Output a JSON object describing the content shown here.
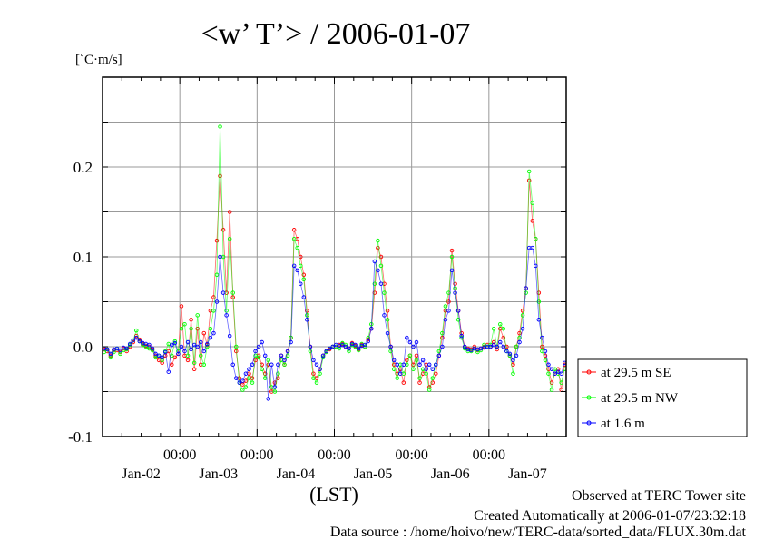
{
  "chart_data": {
    "type": "line",
    "title": "<w’ T’> / 2006-01-07",
    "ylabel": "[˚C·m/s]",
    "xlabel": "(LST)",
    "ylim": [
      -0.1,
      0.3
    ],
    "yticks": [
      -0.1,
      0.0,
      0.1,
      0.2
    ],
    "ytick_labels": [
      "-0.1",
      "0.0",
      "0.1",
      "0.2"
    ],
    "ygrid_step": 0.05,
    "x_unit": "hours since Jan-02 00:00",
    "xlim": [
      0,
      144
    ],
    "x_step_hours": 1,
    "xtick_hours": [
      24,
      48,
      72,
      96,
      120
    ],
    "xtick_labels": [
      "00:00",
      "00:00",
      "00:00",
      "00:00",
      "00:00"
    ],
    "day_labels": [
      "Jan-02",
      "Jan-03",
      "Jan-04",
      "Jan-05",
      "Jan-06",
      "Jan-07"
    ],
    "grid": true,
    "legend_position": "right-bottom-outside",
    "series": [
      {
        "name": "at 29.5 m SE",
        "color": "#ff0000",
        "values": [
          -0.003,
          -0.005,
          -0.01,
          -0.004,
          -0.004,
          -0.006,
          -0.002,
          -0.005,
          0.0,
          0.005,
          0.012,
          0.008,
          0.003,
          0.001,
          0.0,
          -0.003,
          -0.01,
          -0.015,
          -0.018,
          -0.01,
          -0.005,
          -0.02,
          -0.012,
          -0.008,
          0.045,
          -0.01,
          -0.015,
          0.03,
          -0.025,
          0.02,
          -0.02,
          0.015,
          0.002,
          0.04,
          0.055,
          0.118,
          0.19,
          0.13,
          0.06,
          0.15,
          0.055,
          -0.005,
          -0.035,
          -0.042,
          -0.038,
          -0.03,
          -0.035,
          -0.015,
          -0.01,
          -0.02,
          -0.03,
          -0.02,
          -0.05,
          -0.04,
          -0.035,
          -0.01,
          -0.02,
          -0.005,
          0.01,
          0.13,
          0.12,
          0.1,
          0.08,
          0.04,
          0.0,
          -0.03,
          -0.035,
          -0.025,
          -0.01,
          -0.005,
          -0.003,
          0.0,
          0.0,
          0.002,
          0.003,
          0.0,
          -0.002,
          0.004,
          0.001,
          -0.003,
          0.002,
          0.0,
          0.008,
          0.02,
          0.06,
          0.11,
          0.1,
          0.07,
          0.04,
          0.0,
          -0.02,
          -0.03,
          -0.025,
          -0.04,
          -0.015,
          -0.01,
          -0.02,
          -0.01,
          -0.04,
          -0.03,
          -0.02,
          -0.045,
          -0.04,
          -0.03,
          -0.01,
          0.01,
          0.04,
          0.05,
          0.107,
          0.07,
          0.04,
          0.015,
          0.0,
          -0.002,
          -0.003,
          0.0,
          -0.004,
          -0.002,
          0.0,
          0.002,
          0.0,
          0.005,
          -0.003,
          0.02,
          0.01,
          0.0,
          -0.01,
          -0.02,
          0.0,
          0.015,
          0.04,
          0.065,
          0.185,
          0.14,
          0.12,
          0.06,
          0.0,
          -0.01,
          -0.025,
          -0.04,
          -0.03,
          -0.025,
          -0.048,
          -0.02
        ]
      },
      {
        "name": "at 29.5 m NW",
        "color": "#00ff00",
        "values": [
          -0.006,
          -0.003,
          -0.012,
          -0.006,
          -0.002,
          -0.008,
          -0.004,
          -0.003,
          0.002,
          0.007,
          0.018,
          0.006,
          0.002,
          0.0,
          -0.002,
          -0.004,
          -0.012,
          -0.01,
          -0.015,
          -0.005,
          0.003,
          -0.01,
          0.006,
          -0.005,
          0.02,
          0.025,
          -0.01,
          0.02,
          -0.018,
          0.035,
          -0.01,
          -0.02,
          0.0,
          0.02,
          0.04,
          0.08,
          0.245,
          0.1,
          0.04,
          0.12,
          0.06,
          0.0,
          -0.04,
          -0.048,
          -0.045,
          -0.035,
          -0.04,
          -0.01,
          -0.012,
          -0.025,
          -0.035,
          -0.015,
          -0.045,
          -0.05,
          -0.03,
          -0.015,
          -0.02,
          -0.01,
          0.01,
          0.12,
          0.11,
          0.09,
          0.075,
          0.035,
          -0.005,
          -0.035,
          -0.04,
          -0.03,
          -0.012,
          -0.006,
          -0.002,
          0.0,
          0.0,
          -0.002,
          0.004,
          0.002,
          -0.005,
          0.002,
          0.0,
          -0.004,
          0.003,
          0.0,
          0.01,
          0.025,
          0.07,
          0.118,
          0.09,
          0.06,
          0.03,
          -0.005,
          -0.025,
          -0.035,
          -0.02,
          -0.03,
          -0.02,
          -0.01,
          -0.025,
          -0.015,
          -0.035,
          -0.025,
          -0.03,
          -0.048,
          -0.035,
          -0.02,
          -0.005,
          0.015,
          0.045,
          0.06,
          0.1,
          0.065,
          0.03,
          0.01,
          -0.002,
          -0.005,
          -0.005,
          -0.002,
          -0.006,
          -0.004,
          0.002,
          0.0,
          0.002,
          0.02,
          0.0,
          0.025,
          0.02,
          -0.005,
          -0.01,
          -0.03,
          0.0,
          0.01,
          0.035,
          0.06,
          0.195,
          0.16,
          0.12,
          0.05,
          -0.005,
          -0.015,
          -0.03,
          -0.048,
          -0.025,
          -0.03,
          -0.04,
          -0.025
        ]
      },
      {
        "name": "at 1.6 m",
        "color": "#0000ff",
        "values": [
          -0.002,
          -0.003,
          -0.008,
          -0.003,
          -0.002,
          -0.004,
          -0.001,
          -0.002,
          0.003,
          0.007,
          0.01,
          0.006,
          0.004,
          0.003,
          0.002,
          -0.002,
          -0.008,
          -0.01,
          -0.012,
          -0.006,
          -0.028,
          0.002,
          0.004,
          -0.008,
          0.0,
          -0.005,
          0.005,
          -0.003,
          0.002,
          0.0,
          0.005,
          -0.005,
          0.003,
          0.01,
          0.015,
          0.05,
          0.1,
          0.06,
          0.035,
          0.012,
          -0.02,
          -0.035,
          -0.04,
          -0.038,
          -0.03,
          -0.025,
          -0.02,
          -0.005,
          0.0,
          0.005,
          -0.01,
          -0.058,
          -0.02,
          -0.045,
          -0.02,
          -0.01,
          -0.015,
          -0.005,
          0.005,
          0.09,
          0.085,
          0.07,
          0.055,
          0.03,
          0.0,
          -0.015,
          -0.02,
          -0.025,
          -0.01,
          -0.005,
          -0.002,
          0.0,
          0.002,
          0.001,
          0.002,
          0.0,
          -0.002,
          0.003,
          0.002,
          -0.002,
          0.001,
          0.002,
          0.006,
          0.02,
          0.095,
          0.085,
          0.07,
          0.035,
          0.015,
          0.0,
          -0.015,
          -0.02,
          -0.03,
          -0.02,
          0.01,
          0.005,
          0.0,
          0.005,
          -0.02,
          -0.015,
          -0.025,
          -0.02,
          -0.025,
          -0.02,
          -0.01,
          0.0,
          0.03,
          0.04,
          0.085,
          0.06,
          0.04,
          0.012,
          0.0,
          -0.003,
          -0.004,
          -0.002,
          -0.003,
          -0.002,
          -0.001,
          0.0,
          0.0,
          0.002,
          0.0,
          0.005,
          0.0,
          -0.005,
          -0.008,
          -0.015,
          -0.01,
          0.005,
          0.02,
          0.065,
          0.11,
          0.11,
          0.09,
          0.03,
          0.01,
          -0.005,
          -0.02,
          -0.025,
          -0.03,
          -0.028,
          -0.03,
          -0.018
        ]
      }
    ]
  },
  "footer": {
    "observed": "Observed at TERC Tower site",
    "created": "Created Automatically at 2006-01-07/23:32:18",
    "source": "Data source : /home/hoivo/new/TERC-data/sorted_data/FLUX.30m.dat"
  }
}
